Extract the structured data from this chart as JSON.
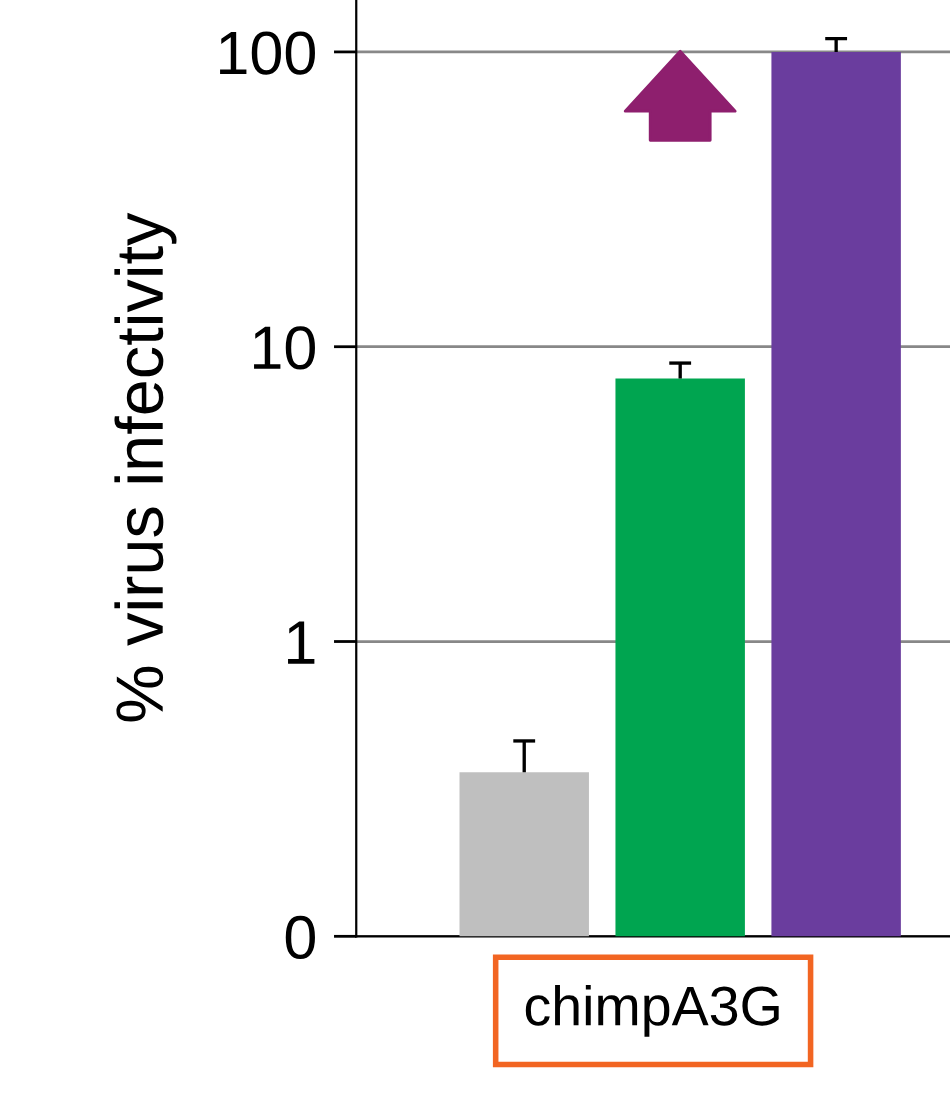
{
  "chart_data": {
    "type": "bar",
    "ylabel": "% virus infectivity",
    "xlabel": "chimpA3G",
    "categories": [
      null,
      null,
      null
    ],
    "values": [
      0.36,
      7.8,
      100
    ],
    "colors": [
      "#bfbfbf",
      "#00a550",
      "#6a3d9e"
    ],
    "errors": [
      [
        0.36,
        0.46
      ],
      [
        7.8,
        8.8
      ],
      [
        100,
        111
      ]
    ],
    "log": true,
    "ylim": [
      0.1,
      150
    ],
    "yticks": [
      {
        "value": 0.1,
        "label": "0"
      },
      1,
      10,
      100
    ],
    "grid": "y"
  }
}
